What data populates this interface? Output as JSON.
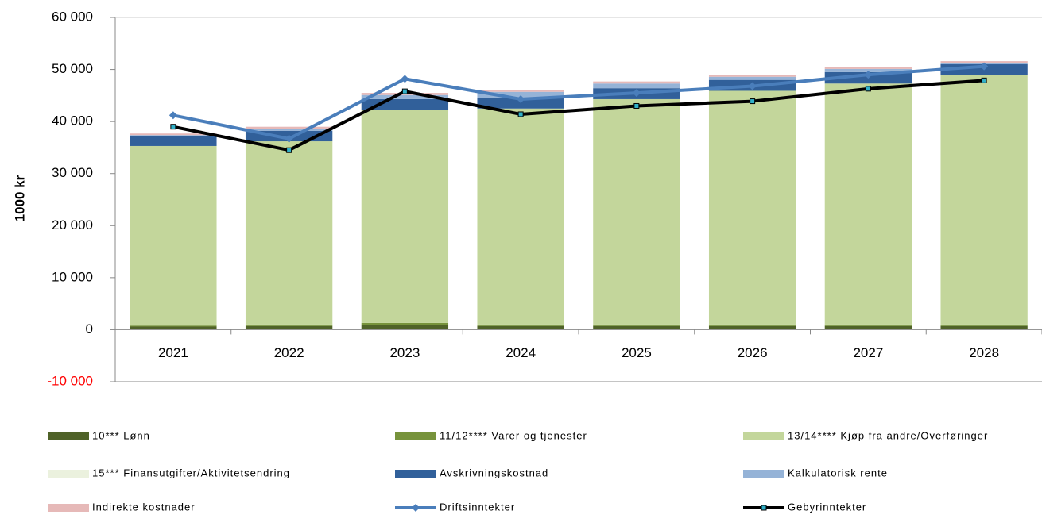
{
  "chart_data": {
    "type": "bar",
    "stacked": true,
    "y_label": "1000 kr",
    "categories": [
      "2021",
      "2022",
      "2023",
      "2024",
      "2025",
      "2026",
      "2027",
      "2028"
    ],
    "ylim": [
      -10000,
      60000
    ],
    "yticks": [
      {
        "value": -10000,
        "label": "-10 000"
      },
      0,
      {
        "value": 10000,
        "label": "10 000"
      },
      {
        "value": 20000,
        "label": "20 000"
      },
      {
        "value": 30000,
        "label": "30 000"
      },
      {
        "value": 40000,
        "label": "40 000"
      },
      {
        "value": 50000,
        "label": "50 000"
      },
      {
        "value": 60000,
        "label": "60 000"
      }
    ],
    "grid": false,
    "series": [
      {
        "name": "10*** Lønn",
        "type": "bar",
        "color": "#4f6228",
        "values": [
          600,
          700,
          900,
          700,
          700,
          700,
          700,
          700
        ]
      },
      {
        "name": "11/12**** Varer og tjenester",
        "type": "bar",
        "color": "#77933c",
        "values": [
          200,
          300,
          400,
          300,
          300,
          300,
          300,
          300
        ]
      },
      {
        "name": "13/14**** Kjøp fra andre/Overføringer",
        "type": "bar",
        "color": "#c3d69b",
        "values": [
          34500,
          35200,
          41000,
          41500,
          43300,
          44900,
          46300,
          47900
        ]
      },
      {
        "name": "15*** Finansutgifter/Aktivitetsendring",
        "type": "bar",
        "color": "#ebf1de",
        "values": [
          0,
          0,
          0,
          0,
          0,
          0,
          0,
          0
        ]
      },
      {
        "name": "Avskrivningskostnad",
        "type": "bar",
        "color": "#31609a",
        "values": [
          1900,
          2000,
          2000,
          2000,
          2100,
          2100,
          2200,
          2100
        ]
      },
      {
        "name": "Kalkulatorisk rente",
        "type": "bar",
        "color": "#95b3d7",
        "values": [
          200,
          400,
          800,
          1200,
          900,
          600,
          600,
          300
        ]
      },
      {
        "name": "Indirekte kostnader",
        "type": "bar",
        "color": "#e6b9b8",
        "values": [
          300,
          400,
          400,
          400,
          400,
          300,
          400,
          300
        ]
      },
      {
        "name": "Driftsinntekter",
        "type": "line",
        "color": "#4a7ebb",
        "values": [
          41200,
          36700,
          48200,
          44300,
          45500,
          46800,
          49000,
          50600
        ]
      },
      {
        "name": "Gebyrinntekter",
        "type": "line",
        "color": "#000000",
        "values": [
          39000,
          34500,
          45800,
          41400,
          43000,
          43900,
          46300,
          47900
        ]
      }
    ]
  }
}
